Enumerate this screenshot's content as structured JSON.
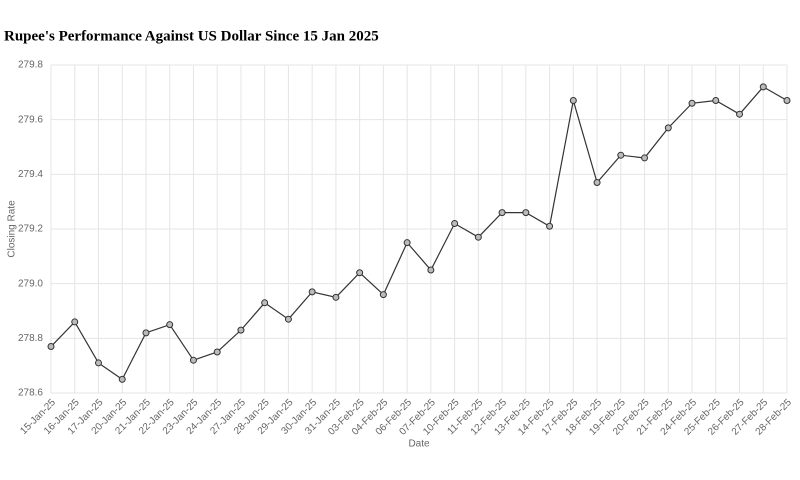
{
  "chart_data": {
    "type": "line",
    "title": "Rupee's Performance Against US Dollar Since 15 Jan 2025",
    "x_label": "Date",
    "y_label": "Closing Rate",
    "categories": [
      "15-Jan-25",
      "16-Jan-25",
      "17-Jan-25",
      "20-Jan-25",
      "21-Jan-25",
      "22-Jan-25",
      "23-Jan-25",
      "24-Jan-25",
      "27-Jan-25",
      "28-Jan-25",
      "29-Jan-25",
      "30-Jan-25",
      "31-Jan-25",
      "03-Feb-25",
      "04-Feb-25",
      "06-Feb-25",
      "07-Feb-25",
      "10-Feb-25",
      "11-Feb-25",
      "12-Feb-25",
      "13-Feb-25",
      "14-Feb-25",
      "17-Feb-25",
      "18-Feb-25",
      "19-Feb-25",
      "20-Feb-25",
      "21-Feb-25",
      "24-Feb-25",
      "25-Feb-25",
      "26-Feb-25",
      "27-Feb-25",
      "28-Feb-25"
    ],
    "values": [
      278.77,
      278.86,
      278.71,
      278.65,
      278.82,
      278.85,
      278.72,
      278.75,
      278.83,
      278.93,
      278.87,
      278.97,
      278.95,
      279.04,
      278.96,
      279.15,
      279.05,
      279.22,
      279.17,
      279.26,
      279.26,
      279.21,
      279.67,
      279.37,
      279.47,
      279.46,
      279.57,
      279.66,
      279.67,
      279.62,
      279.72,
      279.67
    ],
    "color": "#333333",
    "ylim": [
      278.6,
      279.8
    ],
    "yticks": [
      {
        "value": 278.6,
        "label": "278.6"
      },
      {
        "value": 278.8,
        "label": "278.8"
      },
      {
        "value": 279.0,
        "label": "279.0"
      },
      {
        "value": 279.2,
        "label": "279.2"
      },
      {
        "value": 279.4,
        "label": "279.4"
      },
      {
        "value": 279.6,
        "label": "279.6"
      },
      {
        "value": 279.8,
        "label": "279.8"
      }
    ],
    "grid": true
  }
}
